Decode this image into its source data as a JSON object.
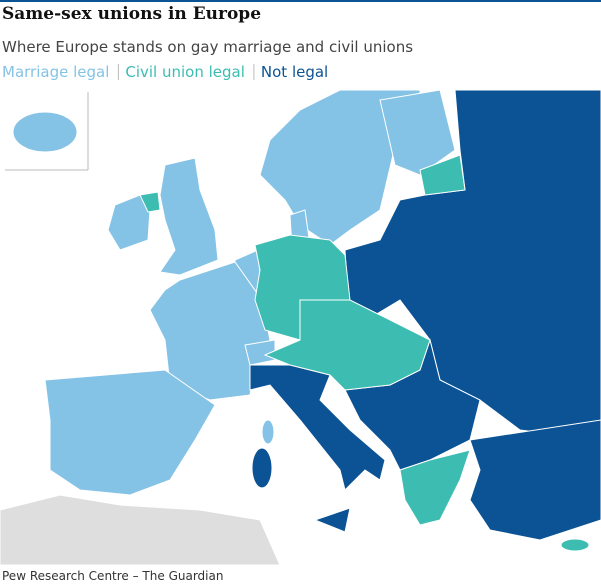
{
  "header": {
    "title": "Same-sex unions in Europe",
    "subtitle": "Where Europe stands on gay marriage and civil unions"
  },
  "legend": [
    {
      "label": "Marriage legal",
      "color": "#84c3e6"
    },
    {
      "label": "Civil union legal",
      "color": "#3dbdb1"
    },
    {
      "label": "Not legal",
      "color": "#0b5394"
    }
  ],
  "source": "Pew Research Centre – The Guardian"
}
